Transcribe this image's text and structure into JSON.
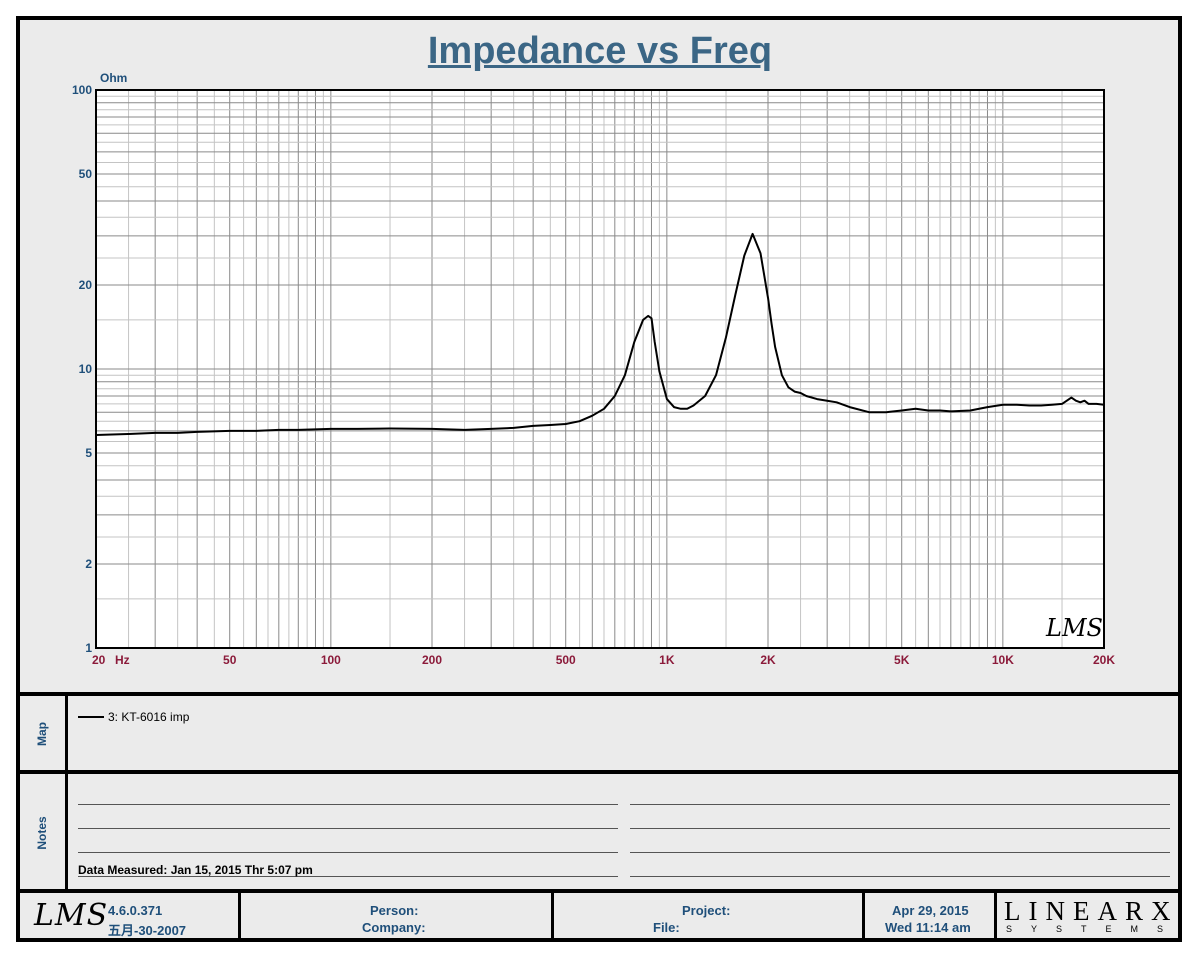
{
  "chart_data": {
    "type": "line",
    "title": "Impedance vs Freq",
    "ylabel": "Ohm",
    "xlabel": "Hz",
    "x_scale": "log",
    "y_scale": "log",
    "xlim": [
      20,
      20000
    ],
    "ylim": [
      1,
      100
    ],
    "x_ticks": [
      {
        "value": 20,
        "label": "20"
      },
      {
        "value": 50,
        "label": "50"
      },
      {
        "value": 100,
        "label": "100"
      },
      {
        "value": 200,
        "label": "200"
      },
      {
        "value": 500,
        "label": "500"
      },
      {
        "value": 1000,
        "label": "1K"
      },
      {
        "value": 2000,
        "label": "2K"
      },
      {
        "value": 5000,
        "label": "5K"
      },
      {
        "value": 10000,
        "label": "10K"
      },
      {
        "value": 20000,
        "label": "20K"
      }
    ],
    "y_ticks": [
      {
        "value": 100,
        "label": "100"
      },
      {
        "value": 50,
        "label": "50"
      },
      {
        "value": 20,
        "label": "20"
      },
      {
        "value": 10,
        "label": "10"
      },
      {
        "value": 5,
        "label": "5"
      },
      {
        "value": 2,
        "label": "2"
      },
      {
        "value": 1,
        "label": "1"
      }
    ],
    "grid": true,
    "series": [
      {
        "name": "3: KT-6016 imp",
        "color": "#000000",
        "x": [
          20,
          25,
          30,
          35,
          40,
          50,
          60,
          70,
          80,
          100,
          120,
          150,
          200,
          250,
          300,
          350,
          400,
          450,
          500,
          550,
          600,
          650,
          700,
          750,
          800,
          850,
          880,
          900,
          920,
          950,
          1000,
          1050,
          1100,
          1150,
          1200,
          1300,
          1400,
          1500,
          1600,
          1700,
          1800,
          1900,
          2000,
          2050,
          2100,
          2200,
          2300,
          2400,
          2500,
          2600,
          2800,
          3000,
          3200,
          3500,
          4000,
          4500,
          5000,
          5500,
          6000,
          6500,
          7000,
          8000,
          9000,
          10000,
          11000,
          12000,
          13000,
          14000,
          15000,
          16000,
          16500,
          17000,
          17500,
          18000,
          19000,
          20000
        ],
        "y": [
          5.8,
          5.85,
          5.9,
          5.9,
          5.95,
          6.0,
          6.0,
          6.05,
          6.05,
          6.1,
          6.1,
          6.12,
          6.1,
          6.05,
          6.1,
          6.15,
          6.25,
          6.3,
          6.35,
          6.5,
          6.8,
          7.2,
          8.0,
          9.5,
          12.5,
          15.0,
          15.5,
          15.2,
          12.5,
          9.8,
          7.8,
          7.3,
          7.2,
          7.2,
          7.4,
          8.0,
          9.5,
          13.0,
          18.5,
          25.5,
          30.5,
          26.0,
          18.0,
          14.5,
          12.0,
          9.5,
          8.6,
          8.3,
          8.2,
          8.0,
          7.8,
          7.7,
          7.6,
          7.3,
          7.0,
          7.0,
          7.1,
          7.2,
          7.1,
          7.1,
          7.05,
          7.1,
          7.3,
          7.45,
          7.45,
          7.4,
          7.4,
          7.45,
          7.5,
          7.9,
          7.7,
          7.6,
          7.7,
          7.5,
          7.5,
          7.45
        ]
      }
    ]
  },
  "labels": {
    "y_unit": "Ohm",
    "x_unit": "Hz",
    "map_label": "Map",
    "notes_label": "Notes",
    "legend_entry": "3: KT-6016 imp",
    "data_measured": "Data Measured: Jan 15, 2015  Thr  5:07 pm",
    "watermark": "LMS"
  },
  "footer": {
    "logo_text": "LMS",
    "version": "4.6.0.371",
    "build_date": "五月-30-2007",
    "person_label": "Person:",
    "company_label": "Company:",
    "project_label": "Project:",
    "file_label": "File:",
    "date": "Apr 29, 2015",
    "time": "Wed 11:14 am",
    "brand_top": "LINEARX",
    "brand_bottom": "SYSTEMS"
  }
}
